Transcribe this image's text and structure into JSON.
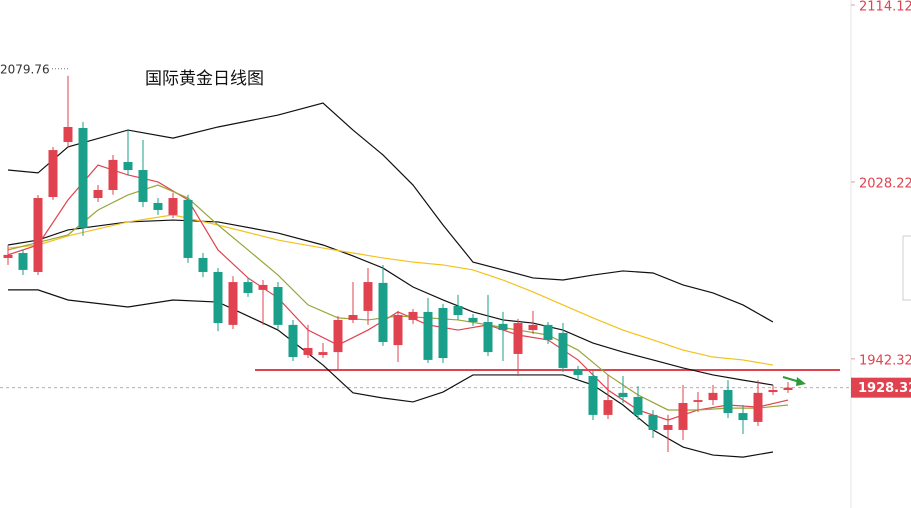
{
  "chart_data": {
    "type": "candlestick",
    "title": "国际黄金日线图",
    "ylim": [
      1869.9,
      2116.55
    ],
    "yticks": [
      2114.12,
      2028.22,
      1942.32
    ],
    "up_color": "#e0434f",
    "down_color": "#1aa08a",
    "high_annotation": "2079.76",
    "last_price": 1928.32,
    "level": 1936.9,
    "level_color": "#e0434f",
    "open": [
      1991.3,
      1993.7,
      1984.5,
      2020.9,
      2047.6,
      2054.4,
      2020.4,
      2024.3,
      2037.9,
      2034.0,
      2018.0,
      2012.2,
      2019.5,
      1991.3,
      1984.5,
      1958.8,
      1979.6,
      1975.8,
      1977.2,
      1958.8,
      1944.2,
      1944.2,
      1945.6,
      1961.2,
      1965.6,
      1979.2,
      1949.0,
      1961.2,
      1965.1,
      1967.0,
      1968.0,
      1962.2,
      1960.2,
      1959.3,
      1944.7,
      1956.3,
      1958.8,
      1954.9,
      1936.9,
      1934.0,
      1915.1,
      1925.8,
      1923.8,
      1915.1,
      1907.8,
      1907.8,
      1921.4,
      1922.3,
      1927.2,
      1916.0,
      1911.7,
      1926.2,
      1927.2
    ],
    "high": [
      1997.6,
      1995.2,
      2021.9,
      2045.2,
      2079.76,
      2057.4,
      2026.7,
      2041.3,
      2053.4,
      2048.6,
      2020.4,
      2022.9,
      2022.0,
      1993.7,
      1986.4,
      1982.5,
      1981.6,
      1980.6,
      1979.6,
      1961.2,
      1958.8,
      1950.0,
      1963.1,
      1979.6,
      1986.4,
      1987.9,
      1965.6,
      1966.5,
      1971.9,
      1969.0,
      1973.4,
      1964.1,
      1973.4,
      1965.1,
      1961.7,
      1965.6,
      1960.2,
      1959.7,
      1938.9,
      1936.4,
      1934.5,
      1934.0,
      1929.1,
      1917.5,
      1915.1,
      1929.6,
      1926.2,
      1929.6,
      1932.0,
      1919.9,
      1932.0,
      1929.6,
      1931.0
    ],
    "low": [
      1987.9,
      1983.0,
      1983.0,
      2019.5,
      2045.2,
      2002.0,
      2018.5,
      2022.0,
      2031.6,
      2016.0,
      2012.2,
      2010.7,
      1988.9,
      1982.0,
      1955.8,
      1956.8,
      1972.4,
      1958.8,
      1956.8,
      1941.3,
      1942.7,
      1942.7,
      1936.9,
      1959.7,
      1958.8,
      1948.6,
      1940.8,
      1959.3,
      1940.3,
      1940.3,
      1961.2,
      1958.3,
      1943.7,
      1941.3,
      1934.0,
      1954.4,
      1949.5,
      1935.9,
      1932.0,
      1912.6,
      1913.1,
      1920.9,
      1912.6,
      1903.9,
      1897.1,
      1902.9,
      1916.5,
      1919.9,
      1913.6,
      1905.8,
      1909.7,
      1924.8,
      1925.8
    ],
    "close": [
      1992.8,
      1985.5,
      2020.4,
      2043.7,
      2054.9,
      2005.9,
      2024.3,
      2038.9,
      2034.0,
      2018.5,
      2014.6,
      2020.4,
      1991.3,
      1984.5,
      1959.7,
      1979.6,
      1974.3,
      1978.2,
      1958.8,
      1943.2,
      1947.6,
      1945.6,
      1961.2,
      1963.6,
      1979.6,
      1950.5,
      1963.6,
      1965.1,
      1941.8,
      1942.7,
      1963.6,
      1960.2,
      1945.6,
      1956.3,
      1959.7,
      1958.8,
      1951.5,
      1937.9,
      1934.5,
      1915.1,
      1922.3,
      1923.8,
      1915.1,
      1907.8,
      1910.2,
      1920.9,
      1922.3,
      1925.8,
      1916.0,
      1912.6,
      1925.8,
      1927.2,
      1928.32
    ],
    "lines": [
      {
        "color": "#111111",
        "x": [
          0,
          2,
          4,
          8,
          11,
          14,
          18,
          21,
          23,
          25,
          27,
          29,
          31,
          33,
          35,
          37,
          39,
          41,
          43,
          45,
          47,
          49,
          51
        ],
        "values": [
          2034.0,
          2032.6,
          2045.2,
          2053.4,
          2049.5,
          2054.9,
          2060.7,
          2066.5,
          2053.4,
          2041.3,
          2026.7,
          2007.3,
          1989.3,
          1985.5,
          1981.6,
          1980.6,
          1983.0,
          1985.0,
          1984.0,
          1978.2,
          1974.3,
          1968.5,
          1960.2
        ]
      },
      {
        "color": "#111111",
        "x": [
          0,
          2,
          4,
          8,
          11,
          14,
          18,
          21,
          23,
          25,
          27,
          29,
          31,
          33,
          35,
          37,
          39,
          41,
          43,
          45,
          47,
          49,
          51
        ],
        "values": [
          1997.6,
          2000.0,
          2004.9,
          2008.8,
          2009.7,
          2008.8,
          2003.4,
          1997.6,
          1992.3,
          1986.4,
          1977.2,
          1970.9,
          1965.1,
          1961.2,
          1959.7,
          1956.3,
          1950.0,
          1945.6,
          1941.8,
          1937.9,
          1934.5,
          1932.0,
          1929.6
        ]
      },
      {
        "color": "#111111",
        "x": [
          0,
          2,
          4,
          8,
          11,
          14,
          18,
          21,
          23,
          25,
          27,
          29,
          31,
          33,
          35,
          37,
          39,
          41,
          43,
          45,
          47,
          49,
          51
        ],
        "values": [
          1975.8,
          1975.8,
          1970.9,
          1967.5,
          1970.9,
          1969.9,
          1956.3,
          1939.3,
          1925.8,
          1923.3,
          1921.4,
          1926.2,
          1934.5,
          1934.5,
          1934.5,
          1934.5,
          1929.6,
          1919.9,
          1907.8,
          1899.5,
          1895.6,
          1894.6,
          1897.1
        ]
      },
      {
        "color": "#f2c21b",
        "x": [
          0,
          2,
          4,
          8,
          11,
          14,
          18,
          21,
          23,
          25,
          27,
          29,
          31,
          33,
          35,
          37,
          39,
          41,
          43,
          45,
          47,
          49,
          51
        ],
        "values": [
          1996.1,
          1997.6,
          2002.0,
          2008.8,
          2012.2,
          2007.3,
          2000.0,
          1996.1,
          1993.7,
          1991.3,
          1989.3,
          1987.9,
          1985.5,
          1980.6,
          1974.8,
          1968.5,
          1962.2,
          1956.3,
          1951.5,
          1946.6,
          1943.2,
          1941.8,
          1939.3
        ]
      },
      {
        "color": "#e0434f",
        "x": [
          0,
          2,
          4,
          6,
          8,
          10,
          12,
          14,
          16,
          18,
          20,
          22,
          24,
          26,
          28,
          30,
          32,
          34,
          36,
          38,
          40,
          42,
          44,
          46,
          48,
          50,
          52
        ],
        "values": [
          1992.8,
          1997.6,
          2019.5,
          2036.4,
          2031.6,
          2028.2,
          2019.5,
          1995.2,
          1981.6,
          1971.9,
          1956.3,
          1949.0,
          1956.3,
          1965.1,
          1958.8,
          1956.3,
          1958.8,
          1953.9,
          1951.5,
          1941.8,
          1927.2,
          1917.5,
          1912.6,
          1917.5,
          1919.9,
          1918.9,
          1922.3
        ]
      },
      {
        "color": "#9aa53a",
        "x": [
          0,
          4,
          6,
          8,
          10,
          12,
          14,
          16,
          18,
          20,
          22,
          24,
          26,
          28,
          30,
          32,
          34,
          36,
          38,
          40,
          42,
          44,
          46,
          48,
          50,
          52
        ],
        "values": [
          1995.2,
          2002.5,
          2014.6,
          2021.9,
          2026.7,
          2020.4,
          2007.3,
          1995.2,
          1983.0,
          1968.5,
          1962.2,
          1961.2,
          1963.1,
          1962.2,
          1961.2,
          1958.8,
          1956.3,
          1953.9,
          1946.6,
          1934.5,
          1924.8,
          1917.5,
          1917.5,
          1918.4,
          1918.4,
          1919.9
        ]
      }
    ]
  }
}
